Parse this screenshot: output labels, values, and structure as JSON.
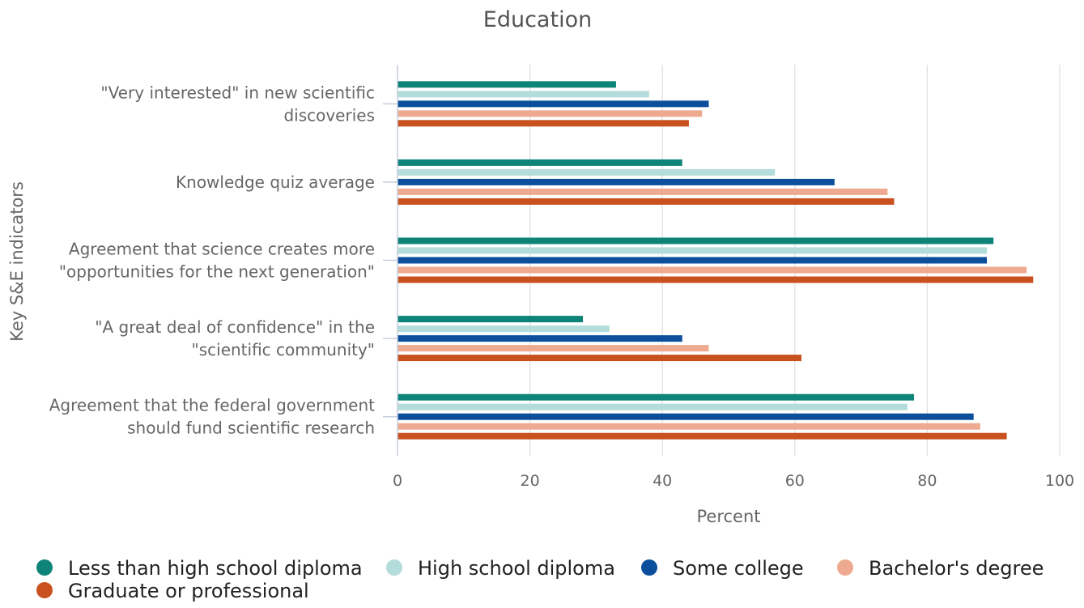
{
  "chart_data": {
    "type": "bar",
    "orientation": "horizontal",
    "title": "Education",
    "xlabel": "Percent",
    "ylabel": "Key S&E indicators",
    "xlim": [
      0,
      100
    ],
    "xticks": [
      "0",
      "20",
      "40",
      "60",
      "80",
      "100"
    ],
    "grid": true,
    "legend_position": "bottom",
    "categories": [
      [
        "\"Very interested\" in new scientific",
        "discoveries"
      ],
      [
        "Knowledge quiz average"
      ],
      [
        "Agreement that science creates more",
        "\"opportunities for the next generation\""
      ],
      [
        "\"A great deal of confidence\" in the",
        "\"scientific community\""
      ],
      [
        "Agreement that the federal government",
        "should fund scientific research"
      ]
    ],
    "series": [
      {
        "name": "Less than high school diploma",
        "color": "#0e8479",
        "values": [
          33,
          43,
          90,
          28,
          78
        ]
      },
      {
        "name": "High school diploma",
        "color": "#b3dcda",
        "values": [
          38,
          57,
          89,
          32,
          77
        ]
      },
      {
        "name": "Some college",
        "color": "#0b4f9c",
        "values": [
          47,
          66,
          89,
          43,
          87
        ]
      },
      {
        "name": "Bachelor's degree",
        "color": "#eeaa90",
        "values": [
          46,
          74,
          95,
          47,
          88
        ]
      },
      {
        "name": "Graduate or professional",
        "color": "#c8511f",
        "values": [
          44,
          75,
          96,
          61,
          92
        ]
      }
    ]
  }
}
